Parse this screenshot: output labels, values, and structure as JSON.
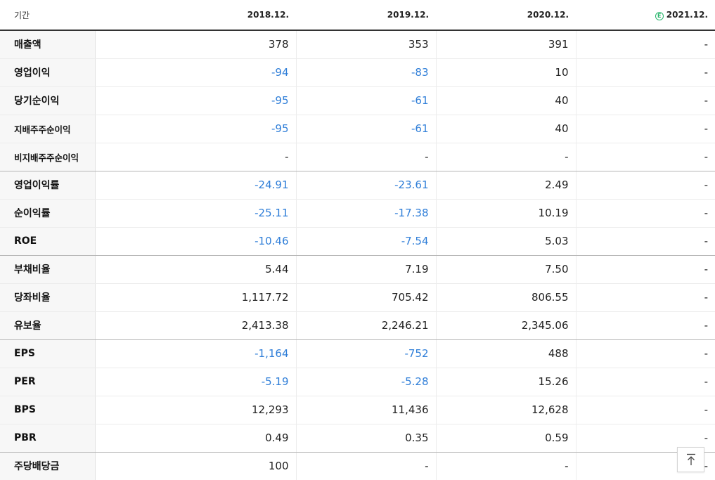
{
  "header": {
    "period_label": "기간",
    "columns": [
      "2018.12.",
      "2019.12.",
      "2020.12.",
      "2021.12."
    ],
    "estimate_mark": "E"
  },
  "rows": [
    {
      "label": "매출액",
      "values": [
        "378",
        "353",
        "391",
        "-"
      ]
    },
    {
      "label": "영업이익",
      "values": [
        "-94",
        "-83",
        "10",
        "-"
      ]
    },
    {
      "label": "당기순이익",
      "values": [
        "-95",
        "-61",
        "40",
        "-"
      ]
    },
    {
      "label": "지배주주순이익",
      "values": [
        "-95",
        "-61",
        "40",
        "-"
      ]
    },
    {
      "label": "비지배주주순이익",
      "values": [
        "-",
        "-",
        "-",
        "-"
      ]
    },
    {
      "label": "영업이익률",
      "values": [
        "-24.91",
        "-23.61",
        "2.49",
        "-"
      ]
    },
    {
      "label": "순이익률",
      "values": [
        "-25.11",
        "-17.38",
        "10.19",
        "-"
      ]
    },
    {
      "label": "ROE",
      "values": [
        "-10.46",
        "-7.54",
        "5.03",
        "-"
      ]
    },
    {
      "label": "부채비율",
      "values": [
        "5.44",
        "7.19",
        "7.50",
        "-"
      ]
    },
    {
      "label": "당좌비율",
      "values": [
        "1,117.72",
        "705.42",
        "806.55",
        "-"
      ]
    },
    {
      "label": "유보율",
      "values": [
        "2,413.38",
        "2,246.21",
        "2,345.06",
        "-"
      ]
    },
    {
      "label": "EPS",
      "values": [
        "-1,164",
        "-752",
        "488",
        "-"
      ]
    },
    {
      "label": "PER",
      "values": [
        "-5.19",
        "-5.28",
        "15.26",
        "-"
      ]
    },
    {
      "label": "BPS",
      "values": [
        "12,293",
        "11,436",
        "12,628",
        "-"
      ]
    },
    {
      "label": "PBR",
      "values": [
        "0.49",
        "0.35",
        "0.59",
        "-"
      ]
    },
    {
      "label": "주당배당금",
      "values": [
        "100",
        "-",
        "-",
        "-"
      ]
    }
  ],
  "colors": {
    "negative": "#2f7ed8",
    "estimate": "#27b56b"
  },
  "icons": {
    "top_button": "arrow-up-to-top-icon"
  }
}
